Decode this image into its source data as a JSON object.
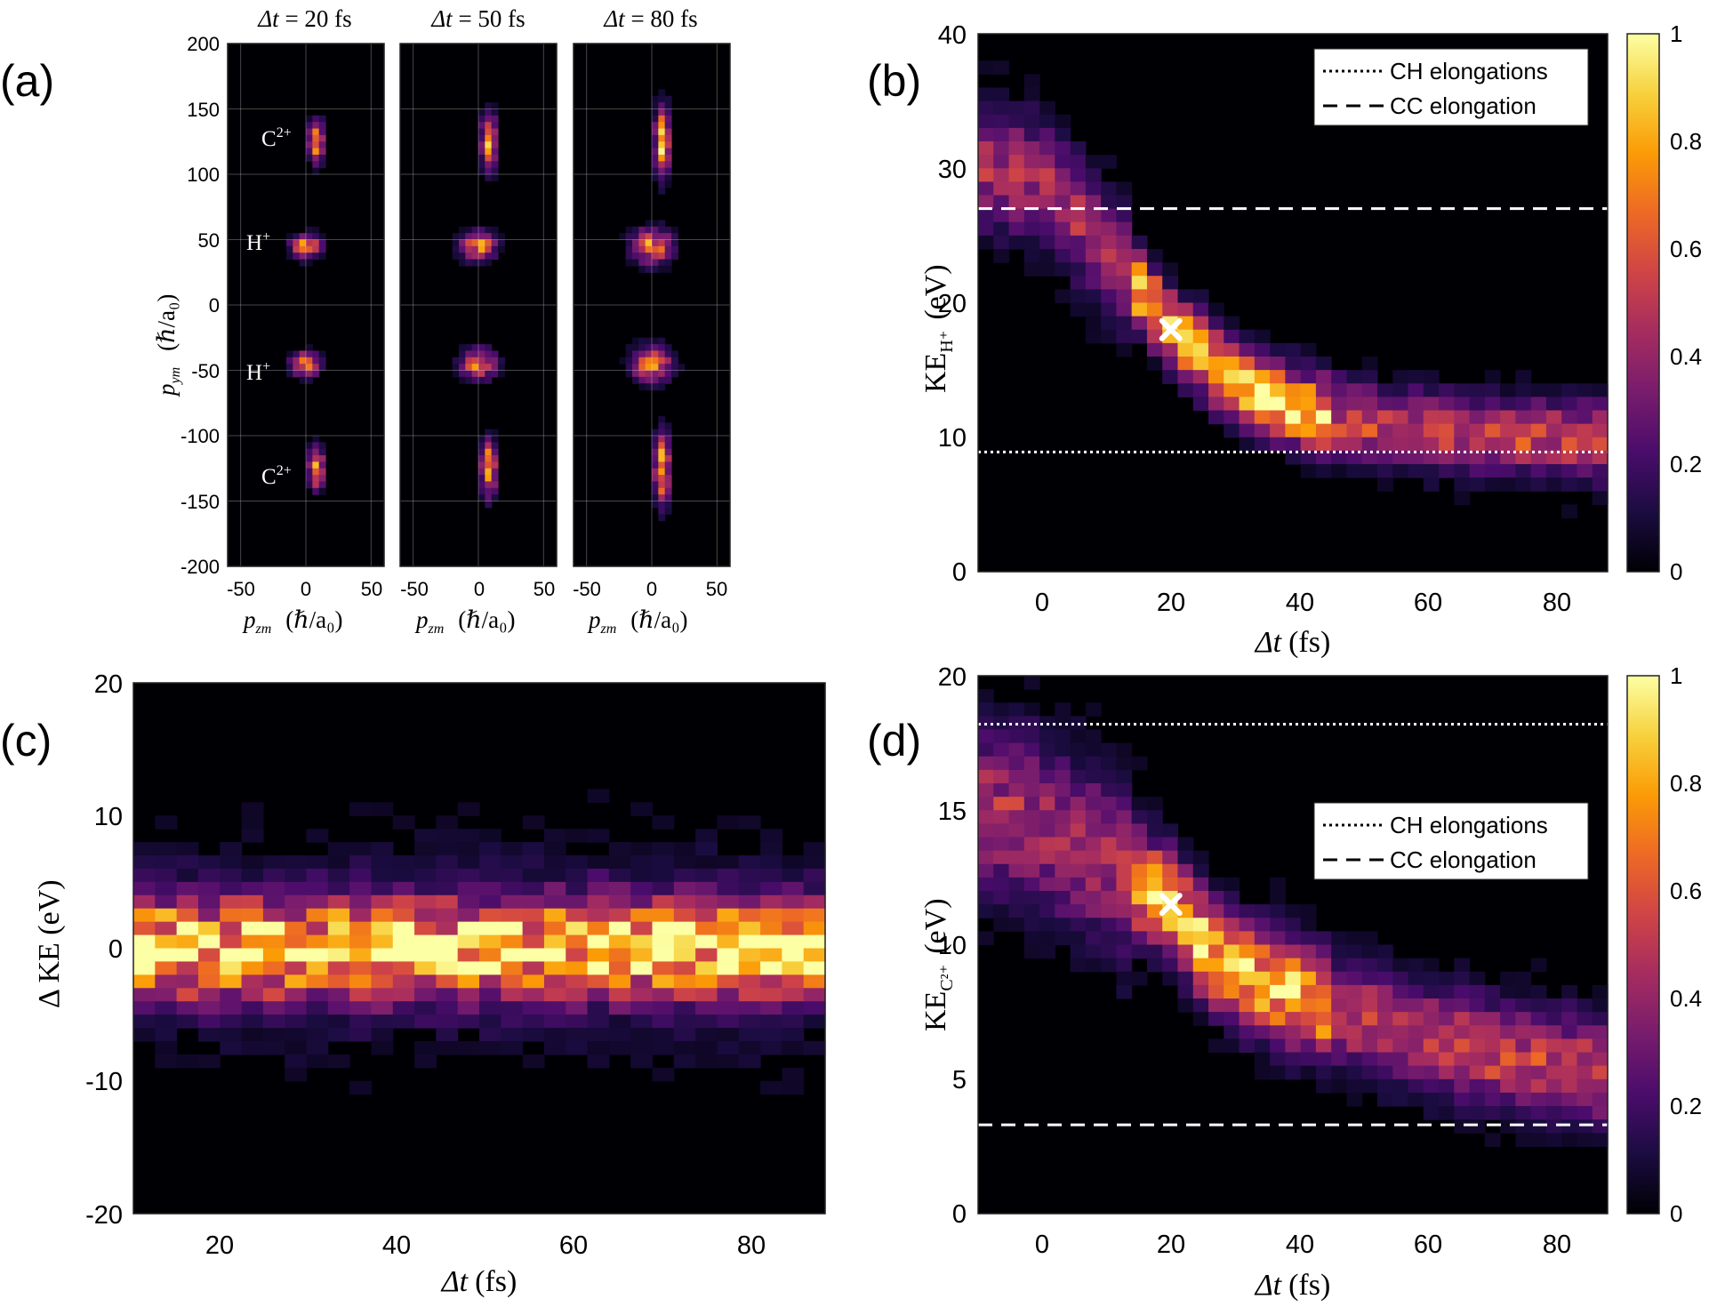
{
  "colors": {
    "low": "#000004",
    "mid_low": "#420a68",
    "mid": "#932667",
    "mid_high": "#dd513a",
    "high": "#fca50a",
    "top": "#fcffa4",
    "marker": "#ffffff",
    "ref_line": "#ffffff"
  },
  "colormap_stops": [
    "#000004",
    "#1b0c41",
    "#4a0c6b",
    "#781c6d",
    "#a52c60",
    "#cf4446",
    "#ed6925",
    "#fb9b06",
    "#f7d13d",
    "#fcffa4"
  ],
  "panels": {
    "a": {
      "label": "(a)",
      "titles": [
        {
          "sym": "Δt",
          "eq": " = 20 fs"
        },
        {
          "sym": "Δt",
          "eq": " = 50 fs"
        },
        {
          "sym": "Δt",
          "eq": " = 80 fs"
        }
      ],
      "ylabel_sym": "p",
      "ylabel_sub": "ym",
      "ylabel_unit": "(ℏ/a₀)",
      "xlabel_sym": "p",
      "xlabel_sub": "zm",
      "xlabel_unit": "(ℏ/a₀)",
      "yticks": [
        "200",
        "150",
        "100",
        "50",
        "0",
        "-50",
        "-100",
        "-150",
        "-200"
      ],
      "xticks": [
        "-50",
        "0",
        "50"
      ],
      "ion_labels": [
        {
          "text": "C",
          "sup": "2+"
        },
        {
          "text": "H",
          "sup": "+"
        },
        {
          "text": "H",
          "sup": "+"
        },
        {
          "text": "C",
          "sup": "2+"
        }
      ]
    },
    "b": {
      "label": "(b)",
      "ylabel": "KE",
      "ylabel_sub": "H⁺",
      "ylabel_unit": "(eV)",
      "xlabel_sym": "Δt",
      "xlabel_unit": "(fs)",
      "yticks": [
        "0",
        "10",
        "20",
        "30",
        "40"
      ],
      "xticks": [
        "0",
        "20",
        "40",
        "60",
        "80"
      ],
      "legend": [
        "CH elongations",
        "CC elongation"
      ],
      "colorbar_ticks": [
        "0",
        "0.2",
        "0.4",
        "0.6",
        "0.8",
        "1"
      ]
    },
    "c": {
      "label": "(c)",
      "ylabel": "Δ KE (eV)",
      "xlabel_sym": "Δt",
      "xlabel_unit": "(fs)",
      "yticks": [
        "20",
        "10",
        "0",
        "-10",
        "-20"
      ],
      "xticks": [
        "20",
        "40",
        "60",
        "80"
      ]
    },
    "d": {
      "label": "(d)",
      "ylabel": "KE",
      "ylabel_sub": "C²⁺",
      "ylabel_unit": "(eV)",
      "xlabel_sym": "Δt",
      "xlabel_unit": "(fs)",
      "yticks": [
        "0",
        "5",
        "10",
        "15",
        "20"
      ],
      "xticks": [
        "0",
        "20",
        "40",
        "60",
        "80"
      ],
      "legend": [
        "CH elongations",
        "CC elongation"
      ],
      "colorbar_ticks": [
        "0",
        "0.2",
        "0.4",
        "0.6",
        "0.8",
        "1"
      ]
    }
  },
  "chart_data": [
    {
      "type": "heatmap",
      "panel": "a",
      "title": "Momentum images at Δt = 20, 50, 80 fs",
      "xlabel": "p_zm (ħ/a0)",
      "ylabel": "p_ym (ħ/a0)",
      "xlim": [
        -60,
        60
      ],
      "ylim": [
        -200,
        200
      ],
      "delays_fs": [
        20,
        50,
        80
      ],
      "features": [
        {
          "ion": "C2+",
          "pz": 8,
          "py": 125
        },
        {
          "ion": "H+",
          "pz": 0,
          "py": 45
        },
        {
          "ion": "H+",
          "pz": 0,
          "py": -45
        },
        {
          "ion": "C2+",
          "pz": 8,
          "py": -125
        }
      ]
    },
    {
      "type": "heatmap",
      "panel": "b",
      "xlabel": "Δt (fs)",
      "ylabel": "KE_H+ (eV)",
      "xlim": [
        -10,
        88
      ],
      "ylim": [
        0,
        40
      ],
      "ridge": {
        "x": [
          -8,
          0,
          10,
          20,
          25,
          30,
          40,
          50,
          60,
          70,
          80,
          88
        ],
        "y": [
          30,
          29,
          24,
          18,
          16,
          14,
          12,
          11,
          10.5,
          10,
          10,
          9.8
        ]
      },
      "marker": {
        "x": 20,
        "y": 18
      },
      "ref_lines": [
        {
          "name": "CH elongations",
          "y": 8.9,
          "style": "dotted"
        },
        {
          "name": "CC elongation",
          "y": 27,
          "style": "dashed"
        }
      ],
      "colorbar_range": [
        0,
        1
      ]
    },
    {
      "type": "heatmap",
      "panel": "c",
      "xlabel": "Δt (fs)",
      "ylabel": "Δ KE (eV)",
      "xlim": [
        10,
        88
      ],
      "ylim": [
        -20,
        20
      ],
      "center_y": 0,
      "width_y": 3.5
    },
    {
      "type": "heatmap",
      "panel": "d",
      "xlabel": "Δt (fs)",
      "ylabel": "KE_C2+ (eV)",
      "xlim": [
        -10,
        88
      ],
      "ylim": [
        0,
        20
      ],
      "ridge": {
        "x": [
          -8,
          0,
          10,
          20,
          25,
          30,
          40,
          50,
          60,
          70,
          80,
          88
        ],
        "y": [
          15,
          14.5,
          13,
          11.5,
          10,
          9,
          8,
          7.2,
          6.5,
          6,
          5.5,
          5.3
        ]
      },
      "marker": {
        "x": 20,
        "y": 11.5
      },
      "ref_lines": [
        {
          "name": "CH elongations",
          "y": 18.2,
          "style": "dotted"
        },
        {
          "name": "CC elongation",
          "y": 3.3,
          "style": "dashed"
        }
      ],
      "colorbar_range": [
        0,
        1
      ]
    }
  ]
}
